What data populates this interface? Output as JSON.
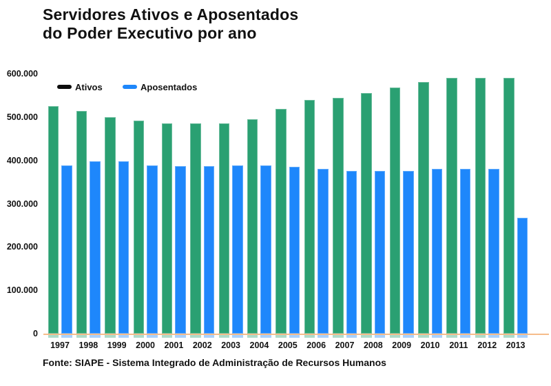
{
  "title": "Servidores Ativos e Aposentados\ndo Poder Executivo por ano",
  "source": "Fonte: SIAPE - Sistema Integrado de Administração de Recursos Humanos",
  "colors": {
    "ativos_bar": "#2aa072",
    "aposentados_bar": "#1e87fb",
    "legend_ativos_swatch": "#0d0d0d",
    "axis_line": "#f6bc8a",
    "text": "#111111"
  },
  "chart_data": {
    "type": "bar",
    "title": "Servidores Ativos e Aposentados do Poder Executivo por ano",
    "xlabel": "",
    "ylabel": "",
    "grid": false,
    "legend_position": "top-left",
    "ylim": [
      0,
      600000
    ],
    "categories": [
      "1997",
      "1998",
      "1999",
      "2000",
      "2001",
      "2002",
      "2003",
      "2004",
      "2005",
      "2006",
      "2007",
      "2008",
      "2009",
      "2010",
      "2011",
      "2012",
      "2013"
    ],
    "series": [
      {
        "name": "Ativos",
        "color": "#2aa072",
        "values": [
          525000,
          514000,
          499000,
          492000,
          486000,
          486000,
          485000,
          495000,
          519000,
          540000,
          545000,
          556000,
          568000,
          581000,
          591000,
          590000,
          591000
        ]
      },
      {
        "name": "Aposentados",
        "color": "#1e87fb",
        "values": [
          389000,
          398000,
          398000,
          389000,
          386000,
          386000,
          389000,
          389000,
          385000,
          381000,
          376000,
          376000,
          376000,
          380000,
          380000,
          380000,
          268000
        ]
      }
    ],
    "legend": [
      {
        "label": "Ativos",
        "swatch": "#0d0d0d"
      },
      {
        "label": "Aposentados",
        "swatch": "#1e87fb"
      }
    ],
    "yticks": [
      {
        "label": "600.000",
        "value": 600000
      },
      {
        "label": "500.000",
        "value": 500000
      },
      {
        "label": "400.000",
        "value": 400000
      },
      {
        "label": "300.000",
        "value": 300000
      },
      {
        "label": "200.000",
        "value": 200000
      },
      {
        "label": "100.000",
        "value": 100000
      },
      {
        "label": "0",
        "value": 0
      }
    ]
  }
}
